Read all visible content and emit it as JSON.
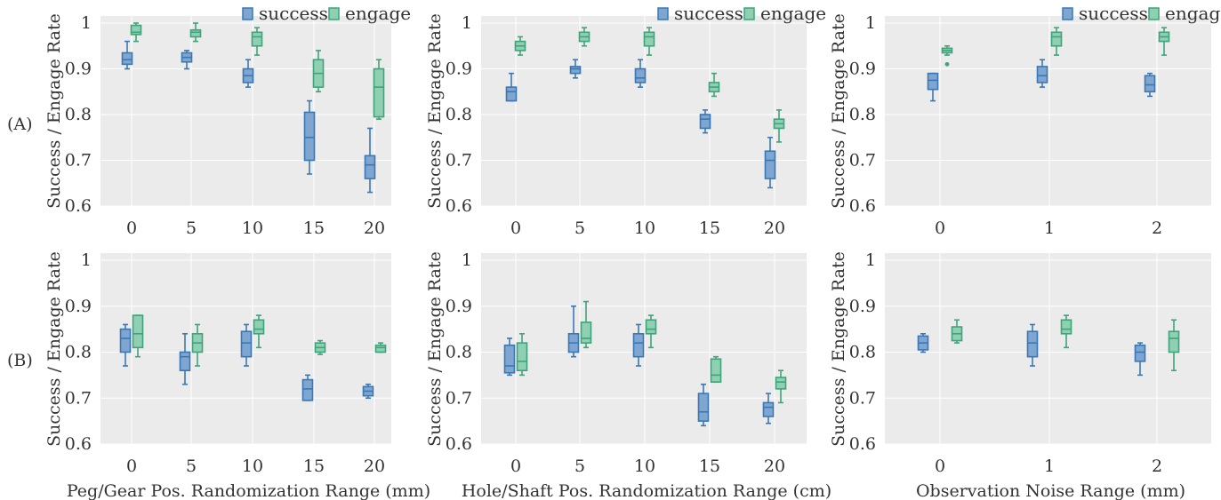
{
  "row_labels": [
    "(A)",
    "(B)"
  ],
  "ylabel": "Success / Engage Rate",
  "legend": [
    "success",
    "engage"
  ],
  "colors": {
    "success_fill": "#7ea6d1",
    "success_edge": "#3a78b5",
    "engage_fill": "#8fd0b3",
    "engage_edge": "#3fa37b",
    "panel_bg": "#ebebeb",
    "grid": "#ffffff"
  },
  "chart_data": [
    {
      "type": "box",
      "row": 0,
      "col": 0,
      "xlabel": "",
      "categories": [
        "0",
        "5",
        "10",
        "15",
        "20"
      ],
      "ylim": [
        0.6,
        1.0
      ],
      "yticks": [
        "0.6",
        "0.7",
        "0.8",
        "0.9",
        "1"
      ],
      "series": [
        {
          "name": "success",
          "boxes": [
            {
              "min": 0.9,
              "q1": 0.91,
              "median": 0.92,
              "q3": 0.935,
              "max": 0.96
            },
            {
              "min": 0.9,
              "q1": 0.915,
              "median": 0.925,
              "q3": 0.935,
              "max": 0.94
            },
            {
              "min": 0.86,
              "q1": 0.87,
              "median": 0.885,
              "q3": 0.9,
              "max": 0.92
            },
            {
              "min": 0.67,
              "q1": 0.7,
              "median": 0.75,
              "q3": 0.805,
              "max": 0.83
            },
            {
              "min": 0.63,
              "q1": 0.66,
              "median": 0.69,
              "q3": 0.71,
              "max": 0.77
            }
          ]
        },
        {
          "name": "engage",
          "boxes": [
            {
              "min": 0.96,
              "q1": 0.975,
              "median": 0.98,
              "q3": 0.995,
              "max": 1.0
            },
            {
              "min": 0.96,
              "q1": 0.97,
              "median": 0.98,
              "q3": 0.985,
              "max": 1.0
            },
            {
              "min": 0.93,
              "q1": 0.95,
              "median": 0.97,
              "q3": 0.98,
              "max": 0.99
            },
            {
              "min": 0.85,
              "q1": 0.86,
              "median": 0.89,
              "q3": 0.92,
              "max": 0.94
            },
            {
              "min": 0.79,
              "q1": 0.795,
              "median": 0.86,
              "q3": 0.9,
              "max": 0.92
            }
          ]
        }
      ]
    },
    {
      "type": "box",
      "row": 0,
      "col": 1,
      "xlabel": "",
      "categories": [
        "0",
        "5",
        "10",
        "15",
        "20"
      ],
      "ylim": [
        0.6,
        1.0
      ],
      "yticks": [
        "0.6",
        "0.7",
        "0.8",
        "0.9",
        "1"
      ],
      "series": [
        {
          "name": "success",
          "boxes": [
            {
              "min": 0.83,
              "q1": 0.83,
              "median": 0.85,
              "q3": 0.86,
              "max": 0.89
            },
            {
              "min": 0.88,
              "q1": 0.89,
              "median": 0.9,
              "q3": 0.905,
              "max": 0.92
            },
            {
              "min": 0.86,
              "q1": 0.87,
              "median": 0.88,
              "q3": 0.9,
              "max": 0.92
            },
            {
              "min": 0.76,
              "q1": 0.77,
              "median": 0.79,
              "q3": 0.8,
              "max": 0.81
            },
            {
              "min": 0.64,
              "q1": 0.66,
              "median": 0.7,
              "q3": 0.72,
              "max": 0.75
            }
          ]
        },
        {
          "name": "engage",
          "boxes": [
            {
              "min": 0.93,
              "q1": 0.94,
              "median": 0.95,
              "q3": 0.96,
              "max": 0.97
            },
            {
              "min": 0.95,
              "q1": 0.96,
              "median": 0.97,
              "q3": 0.98,
              "max": 0.99
            },
            {
              "min": 0.93,
              "q1": 0.95,
              "median": 0.97,
              "q3": 0.98,
              "max": 0.99
            },
            {
              "min": 0.84,
              "q1": 0.85,
              "median": 0.86,
              "q3": 0.87,
              "max": 0.89
            },
            {
              "min": 0.74,
              "q1": 0.77,
              "median": 0.78,
              "q3": 0.79,
              "max": 0.81
            }
          ]
        }
      ]
    },
    {
      "type": "box",
      "row": 0,
      "col": 2,
      "xlabel": "",
      "categories": [
        "0",
        "1",
        "2"
      ],
      "ylim": [
        0.6,
        1.0
      ],
      "yticks": [
        "0.6",
        "0.7",
        "0.8",
        "0.9",
        "1"
      ],
      "series": [
        {
          "name": "success",
          "boxes": [
            {
              "min": 0.83,
              "q1": 0.855,
              "median": 0.875,
              "q3": 0.89,
              "max": 0.89
            },
            {
              "min": 0.86,
              "q1": 0.87,
              "median": 0.885,
              "q3": 0.905,
              "max": 0.92
            },
            {
              "min": 0.84,
              "q1": 0.85,
              "median": 0.865,
              "q3": 0.885,
              "max": 0.89
            }
          ]
        },
        {
          "name": "engage",
          "boxes": [
            {
              "min": 0.93,
              "q1": 0.935,
              "median": 0.94,
              "q3": 0.945,
              "max": 0.95,
              "outliers": [
                0.91
              ]
            },
            {
              "min": 0.93,
              "q1": 0.95,
              "median": 0.97,
              "q3": 0.98,
              "max": 0.99
            },
            {
              "min": 0.93,
              "q1": 0.96,
              "median": 0.97,
              "q3": 0.98,
              "max": 0.99
            }
          ]
        }
      ]
    },
    {
      "type": "box",
      "row": 1,
      "col": 0,
      "xlabel": "Peg/Gear Pos. Randomization Range (mm)",
      "categories": [
        "0",
        "5",
        "10",
        "15",
        "20"
      ],
      "ylim": [
        0.6,
        1.0
      ],
      "yticks": [
        "0.6",
        "0.7",
        "0.8",
        "0.9",
        "1"
      ],
      "series": [
        {
          "name": "success",
          "boxes": [
            {
              "min": 0.77,
              "q1": 0.8,
              "median": 0.83,
              "q3": 0.85,
              "max": 0.86
            },
            {
              "min": 0.73,
              "q1": 0.76,
              "median": 0.79,
              "q3": 0.8,
              "max": 0.84
            },
            {
              "min": 0.77,
              "q1": 0.79,
              "median": 0.82,
              "q3": 0.845,
              "max": 0.86
            },
            {
              "min": 0.695,
              "q1": 0.695,
              "median": 0.72,
              "q3": 0.74,
              "max": 0.75
            },
            {
              "min": 0.7,
              "q1": 0.705,
              "median": 0.715,
              "q3": 0.725,
              "max": 0.73
            }
          ]
        },
        {
          "name": "engage",
          "boxes": [
            {
              "min": 0.79,
              "q1": 0.81,
              "median": 0.84,
              "q3": 0.88,
              "max": 0.88
            },
            {
              "min": 0.77,
              "q1": 0.8,
              "median": 0.82,
              "q3": 0.84,
              "max": 0.86
            },
            {
              "min": 0.81,
              "q1": 0.84,
              "median": 0.85,
              "q3": 0.87,
              "max": 0.88
            },
            {
              "min": 0.795,
              "q1": 0.8,
              "median": 0.81,
              "q3": 0.82,
              "max": 0.825
            },
            {
              "min": 0.8,
              "q1": 0.8,
              "median": 0.81,
              "q3": 0.815,
              "max": 0.82
            }
          ]
        }
      ]
    },
    {
      "type": "box",
      "row": 1,
      "col": 1,
      "xlabel": "Hole/Shaft Pos. Randomization Range (cm)",
      "categories": [
        "0",
        "5",
        "10",
        "15",
        "20"
      ],
      "ylim": [
        0.6,
        1.0
      ],
      "yticks": [
        "0.6",
        "0.7",
        "0.8",
        "0.9",
        "1"
      ],
      "series": [
        {
          "name": "success",
          "boxes": [
            {
              "min": 0.75,
              "q1": 0.755,
              "median": 0.77,
              "q3": 0.815,
              "max": 0.83
            },
            {
              "min": 0.79,
              "q1": 0.8,
              "median": 0.82,
              "q3": 0.84,
              "max": 0.9
            },
            {
              "min": 0.77,
              "q1": 0.79,
              "median": 0.82,
              "q3": 0.84,
              "max": 0.86
            },
            {
              "min": 0.64,
              "q1": 0.65,
              "median": 0.67,
              "q3": 0.71,
              "max": 0.73
            },
            {
              "min": 0.645,
              "q1": 0.66,
              "median": 0.68,
              "q3": 0.69,
              "max": 0.71
            }
          ]
        },
        {
          "name": "engage",
          "boxes": [
            {
              "min": 0.75,
              "q1": 0.76,
              "median": 0.78,
              "q3": 0.82,
              "max": 0.84
            },
            {
              "min": 0.81,
              "q1": 0.82,
              "median": 0.83,
              "q3": 0.865,
              "max": 0.91
            },
            {
              "min": 0.81,
              "q1": 0.84,
              "median": 0.85,
              "q3": 0.87,
              "max": 0.88
            },
            {
              "min": 0.735,
              "q1": 0.735,
              "median": 0.75,
              "q3": 0.785,
              "max": 0.79
            },
            {
              "min": 0.69,
              "q1": 0.72,
              "median": 0.735,
              "q3": 0.745,
              "max": 0.76
            }
          ]
        }
      ]
    },
    {
      "type": "box",
      "row": 1,
      "col": 2,
      "xlabel": "Observation Noise Range (mm)",
      "categories": [
        "0",
        "1",
        "2"
      ],
      "ylim": [
        0.6,
        1.0
      ],
      "yticks": [
        "0.6",
        "0.7",
        "0.8",
        "0.9",
        "1"
      ],
      "series": [
        {
          "name": "success",
          "boxes": [
            {
              "min": 0.8,
              "q1": 0.805,
              "median": 0.82,
              "q3": 0.835,
              "max": 0.84
            },
            {
              "min": 0.77,
              "q1": 0.79,
              "median": 0.82,
              "q3": 0.845,
              "max": 0.86
            },
            {
              "min": 0.75,
              "q1": 0.78,
              "median": 0.8,
              "q3": 0.815,
              "max": 0.82
            }
          ]
        },
        {
          "name": "engage",
          "boxes": [
            {
              "min": 0.82,
              "q1": 0.825,
              "median": 0.84,
              "q3": 0.855,
              "max": 0.87
            },
            {
              "min": 0.81,
              "q1": 0.84,
              "median": 0.85,
              "q3": 0.87,
              "max": 0.88
            },
            {
              "min": 0.76,
              "q1": 0.8,
              "median": 0.83,
              "q3": 0.845,
              "max": 0.87
            }
          ]
        }
      ]
    }
  ]
}
